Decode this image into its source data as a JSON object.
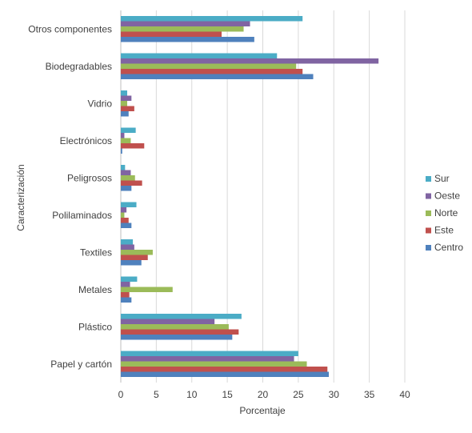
{
  "chart_data": {
    "type": "bar",
    "orientation": "horizontal",
    "categories": [
      "Otros componentes",
      "Biodegradables",
      "Vidrio",
      "Electrónicos",
      "Peligrosos",
      "Polilaminados",
      "Textiles",
      "Metales",
      "Plástico",
      "Papel y cartón"
    ],
    "series": [
      {
        "name": "Sur",
        "color": "#4BACC6",
        "values": [
          25.6,
          22.0,
          0.9,
          2.1,
          0.6,
          2.2,
          1.7,
          2.3,
          17.0,
          25.0
        ]
      },
      {
        "name": "Oeste",
        "color": "#8064A2",
        "values": [
          18.2,
          36.3,
          1.5,
          0.5,
          1.4,
          0.8,
          1.9,
          1.3,
          13.2,
          24.4
        ]
      },
      {
        "name": "Norte",
        "color": "#9BBB59",
        "values": [
          17.3,
          24.7,
          0.9,
          1.4,
          2.0,
          0.5,
          4.5,
          7.3,
          15.2,
          26.2
        ]
      },
      {
        "name": "Este",
        "color": "#C0504D",
        "values": [
          14.2,
          25.6,
          1.9,
          3.3,
          3.0,
          1.1,
          3.8,
          1.2,
          16.6,
          29.1
        ]
      },
      {
        "name": "Centro",
        "color": "#4F81BD",
        "values": [
          18.8,
          27.1,
          1.1,
          0.2,
          1.5,
          1.5,
          2.9,
          1.5,
          15.7,
          29.3
        ]
      }
    ],
    "xlabel": "Porcentaje",
    "ylabel": "Caracterización",
    "xlim": [
      0,
      40
    ],
    "xticks": [
      "0",
      "5",
      "10",
      "15",
      "20",
      "25",
      "30",
      "35",
      "40"
    ],
    "legend_entries": [
      "Sur",
      "Oeste",
      "Norte",
      "Este",
      "Centro"
    ],
    "legend_position": "right",
    "grid": true,
    "grid_color": "#D9D9D9"
  }
}
